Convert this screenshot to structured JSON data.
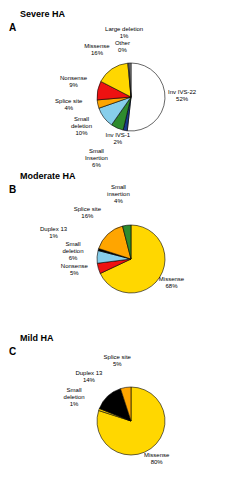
{
  "chart_data": [
    {
      "type": "pie",
      "title": "Severe HA",
      "annotations": [
        "A"
      ],
      "categories": [
        "Inv IVS-22",
        "Inv IVS-1",
        "Small\nInsertion",
        "Small\ndeletion",
        "Splice site",
        "Nonsense",
        "Missense",
        "Other",
        "Large deletion"
      ],
      "values": [
        52,
        2,
        6,
        10,
        4,
        9,
        16,
        0.5,
        1
      ],
      "value_labels": [
        "52%",
        "2%",
        "6%",
        "10%",
        "4%",
        "9%",
        "16%",
        "0%",
        "1%"
      ],
      "colors": [
        "#FFFFFF",
        "#1A3A8A",
        "#2E8B2E",
        "#87CEEB",
        "#FFA500",
        "#EE1111",
        "#FFD700",
        "#BBBBBB",
        "#888888"
      ],
      "data_labels": true
    },
    {
      "type": "pie",
      "title": "Moderate HA",
      "annotations": [
        "B"
      ],
      "categories": [
        "Missense",
        "Nonsense",
        "Small\ndeletion",
        "Duplex 13",
        "Splice site",
        "Small\ninsertion"
      ],
      "values": [
        68,
        5,
        6,
        1,
        16,
        4
      ],
      "value_labels": [
        "68%",
        "5%",
        "6%",
        "1%",
        "16%",
        "4%"
      ],
      "colors": [
        "#FFD700",
        "#EE1111",
        "#87CEEB",
        "#000000",
        "#FFA500",
        "#2E8B2E"
      ],
      "data_labels": true
    },
    {
      "type": "pie",
      "title": "Mild HA",
      "annotations": [
        "C"
      ],
      "categories": [
        "Missense",
        "Small\ndeletion",
        "Duplex 13",
        "Splice site"
      ],
      "values": [
        80,
        1,
        14,
        5
      ],
      "value_labels": [
        "80%",
        "1%",
        "14%",
        "5%"
      ],
      "colors": [
        "#FFD700",
        "#FFD700",
        "#000000",
        "#FFA500"
      ],
      "data_labels": true
    }
  ]
}
